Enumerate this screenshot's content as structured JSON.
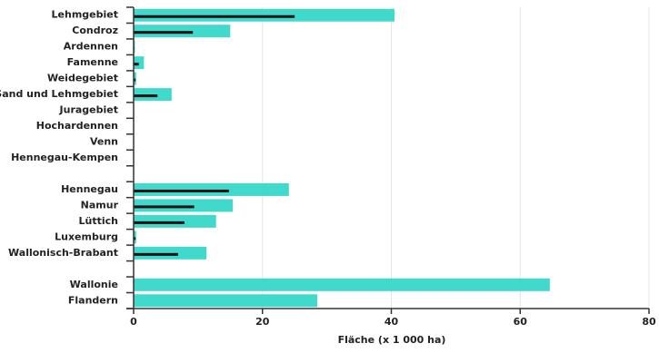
{
  "chart_data": {
    "type": "hbar",
    "x_label": "Fläche (x 1 000 ha)",
    "categories": [
      "Lehmgebiet",
      "Condroz",
      "Ardennen",
      "Famenne",
      "Weidegebiet",
      "Sand und Lehmgebiet",
      "Juragebiet",
      "Hochardennen",
      "Venn",
      "Hennegau-Kempen",
      null,
      "Hennegau",
      "Namur",
      "Lüttich",
      "Luxemburg",
      "Wallonisch-Brabant",
      null,
      "Wallonie",
      "Flandern"
    ],
    "series": [
      {
        "color": "#40d9cc",
        "values": [
          40.5,
          15.0,
          0.2,
          1.6,
          0.4,
          5.9,
          0,
          0,
          0,
          0,
          null,
          24.1,
          15.4,
          12.8,
          0.4,
          11.3,
          null,
          64.6,
          28.5
        ]
      },
      {
        "color": "#111111",
        "values": [
          25.0,
          9.2,
          0.1,
          0.8,
          0.3,
          3.7,
          0,
          0,
          0,
          0,
          null,
          14.8,
          9.4,
          7.9,
          0.3,
          6.9,
          null,
          null,
          null
        ]
      }
    ],
    "xlim": [
      0,
      80
    ],
    "xticks": [
      0,
      20,
      40,
      60,
      80
    ],
    "grid": true
  }
}
